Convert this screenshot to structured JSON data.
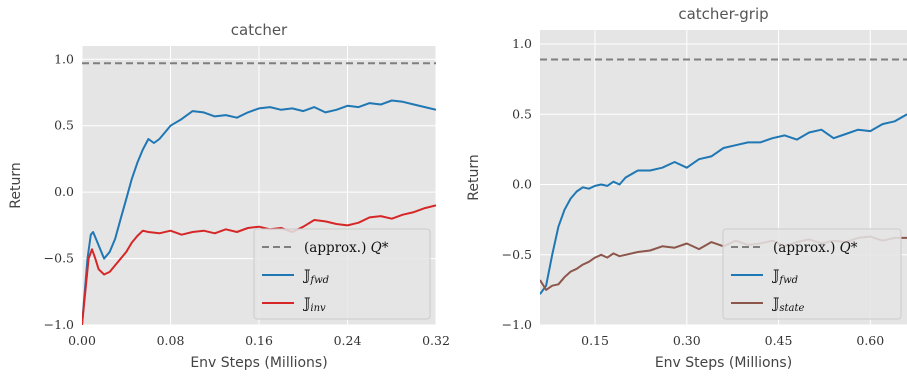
{
  "chart_data": [
    {
      "type": "line",
      "title": "catcher",
      "xlabel": "Env Steps (Millions)",
      "ylabel": "Return",
      "xlim": [
        0.0,
        0.32
      ],
      "ylim": [
        -1.0,
        1.1
      ],
      "xticks": [
        0.0,
        0.08,
        0.16,
        0.24,
        0.32
      ],
      "xtick_labels": [
        "0.00",
        "0.08",
        "0.16",
        "0.24",
        "0.32"
      ],
      "yticks": [
        -1.0,
        -0.5,
        0.0,
        0.5,
        1.0
      ],
      "ytick_labels": [
        "−1.0",
        "−0.5",
        "0.0",
        "0.5",
        "1.0"
      ],
      "grid": true,
      "legend_position": "bottom-right",
      "reference_line": {
        "name": "(approx.) Q*",
        "y": 0.97,
        "color": "#7f7f7f"
      },
      "series": [
        {
          "name": "𝕁fwd",
          "color": "#1f77b4",
          "x": [
            0.0,
            0.005,
            0.008,
            0.01,
            0.012,
            0.015,
            0.02,
            0.025,
            0.03,
            0.035,
            0.04,
            0.045,
            0.05,
            0.055,
            0.06,
            0.065,
            0.07,
            0.075,
            0.08,
            0.09,
            0.1,
            0.11,
            0.12,
            0.13,
            0.14,
            0.15,
            0.16,
            0.17,
            0.18,
            0.19,
            0.2,
            0.21,
            0.22,
            0.23,
            0.24,
            0.25,
            0.26,
            0.27,
            0.28,
            0.29,
            0.3,
            0.31,
            0.32
          ],
          "y": [
            -1.0,
            -0.5,
            -0.32,
            -0.3,
            -0.34,
            -0.4,
            -0.5,
            -0.45,
            -0.35,
            -0.2,
            -0.05,
            0.1,
            0.22,
            0.32,
            0.4,
            0.37,
            0.4,
            0.45,
            0.5,
            0.55,
            0.61,
            0.6,
            0.57,
            0.58,
            0.56,
            0.6,
            0.63,
            0.64,
            0.62,
            0.63,
            0.61,
            0.64,
            0.6,
            0.62,
            0.65,
            0.64,
            0.67,
            0.66,
            0.69,
            0.68,
            0.66,
            0.64,
            0.62
          ]
        },
        {
          "name": "𝕁inv",
          "color": "#d62728",
          "x": [
            0.0,
            0.003,
            0.006,
            0.009,
            0.012,
            0.015,
            0.02,
            0.025,
            0.03,
            0.035,
            0.04,
            0.045,
            0.05,
            0.055,
            0.06,
            0.07,
            0.08,
            0.09,
            0.1,
            0.11,
            0.12,
            0.13,
            0.14,
            0.15,
            0.16,
            0.17,
            0.18,
            0.19,
            0.2,
            0.21,
            0.22,
            0.23,
            0.24,
            0.25,
            0.26,
            0.27,
            0.28,
            0.29,
            0.3,
            0.31,
            0.32
          ],
          "y": [
            -1.0,
            -0.75,
            -0.5,
            -0.43,
            -0.5,
            -0.58,
            -0.62,
            -0.6,
            -0.55,
            -0.5,
            -0.45,
            -0.38,
            -0.33,
            -0.29,
            -0.3,
            -0.31,
            -0.29,
            -0.32,
            -0.3,
            -0.29,
            -0.31,
            -0.28,
            -0.3,
            -0.27,
            -0.26,
            -0.28,
            -0.27,
            -0.3,
            -0.26,
            -0.21,
            -0.22,
            -0.24,
            -0.25,
            -0.23,
            -0.19,
            -0.18,
            -0.2,
            -0.17,
            -0.15,
            -0.12,
            -0.1
          ]
        }
      ]
    },
    {
      "type": "line",
      "title": "catcher-grip",
      "xlabel": "Env Steps (Millions)",
      "ylabel": "Return",
      "xlim": [
        0.06,
        0.66
      ],
      "ylim": [
        -1.0,
        1.1
      ],
      "xticks": [
        0.15,
        0.3,
        0.45,
        0.6
      ],
      "xtick_labels": [
        "0.15",
        "0.30",
        "0.45",
        "0.60"
      ],
      "yticks": [
        -1.0,
        -0.5,
        0.0,
        0.5,
        1.0
      ],
      "ytick_labels": [
        "−1.0",
        "−0.5",
        "0.0",
        "0.5",
        "1.0"
      ],
      "grid": true,
      "legend_position": "bottom-right",
      "reference_line": {
        "name": "(approx.) Q*",
        "y": 0.89,
        "color": "#7f7f7f"
      },
      "series": [
        {
          "name": "𝕁fwd",
          "color": "#1f77b4",
          "x": [
            0.06,
            0.07,
            0.08,
            0.09,
            0.1,
            0.11,
            0.12,
            0.13,
            0.14,
            0.15,
            0.16,
            0.17,
            0.18,
            0.19,
            0.2,
            0.22,
            0.24,
            0.26,
            0.28,
            0.3,
            0.32,
            0.34,
            0.36,
            0.38,
            0.4,
            0.42,
            0.44,
            0.46,
            0.48,
            0.5,
            0.52,
            0.54,
            0.56,
            0.58,
            0.6,
            0.62,
            0.64,
            0.66
          ],
          "y": [
            -0.78,
            -0.72,
            -0.5,
            -0.3,
            -0.18,
            -0.1,
            -0.05,
            -0.02,
            -0.03,
            -0.01,
            0.0,
            -0.01,
            0.02,
            0.0,
            0.05,
            0.1,
            0.1,
            0.12,
            0.16,
            0.12,
            0.18,
            0.2,
            0.26,
            0.28,
            0.3,
            0.3,
            0.33,
            0.35,
            0.32,
            0.37,
            0.39,
            0.33,
            0.36,
            0.39,
            0.38,
            0.43,
            0.45,
            0.5
          ]
        },
        {
          "name": "𝕁state",
          "color": "#8c564b",
          "x": [
            0.06,
            0.07,
            0.08,
            0.09,
            0.1,
            0.11,
            0.12,
            0.13,
            0.14,
            0.15,
            0.16,
            0.17,
            0.18,
            0.19,
            0.2,
            0.22,
            0.24,
            0.26,
            0.28,
            0.3,
            0.32,
            0.34,
            0.36,
            0.38,
            0.4,
            0.42,
            0.44,
            0.46,
            0.48,
            0.5,
            0.52,
            0.54,
            0.56,
            0.58,
            0.6,
            0.62,
            0.64,
            0.66
          ],
          "y": [
            -0.68,
            -0.75,
            -0.72,
            -0.71,
            -0.66,
            -0.62,
            -0.6,
            -0.57,
            -0.55,
            -0.52,
            -0.5,
            -0.52,
            -0.49,
            -0.51,
            -0.5,
            -0.48,
            -0.47,
            -0.44,
            -0.45,
            -0.42,
            -0.46,
            -0.41,
            -0.44,
            -0.4,
            -0.43,
            -0.42,
            -0.4,
            -0.44,
            -0.41,
            -0.39,
            -0.42,
            -0.4,
            -0.41,
            -0.38,
            -0.37,
            -0.4,
            -0.38,
            -0.38
          ]
        }
      ]
    }
  ]
}
